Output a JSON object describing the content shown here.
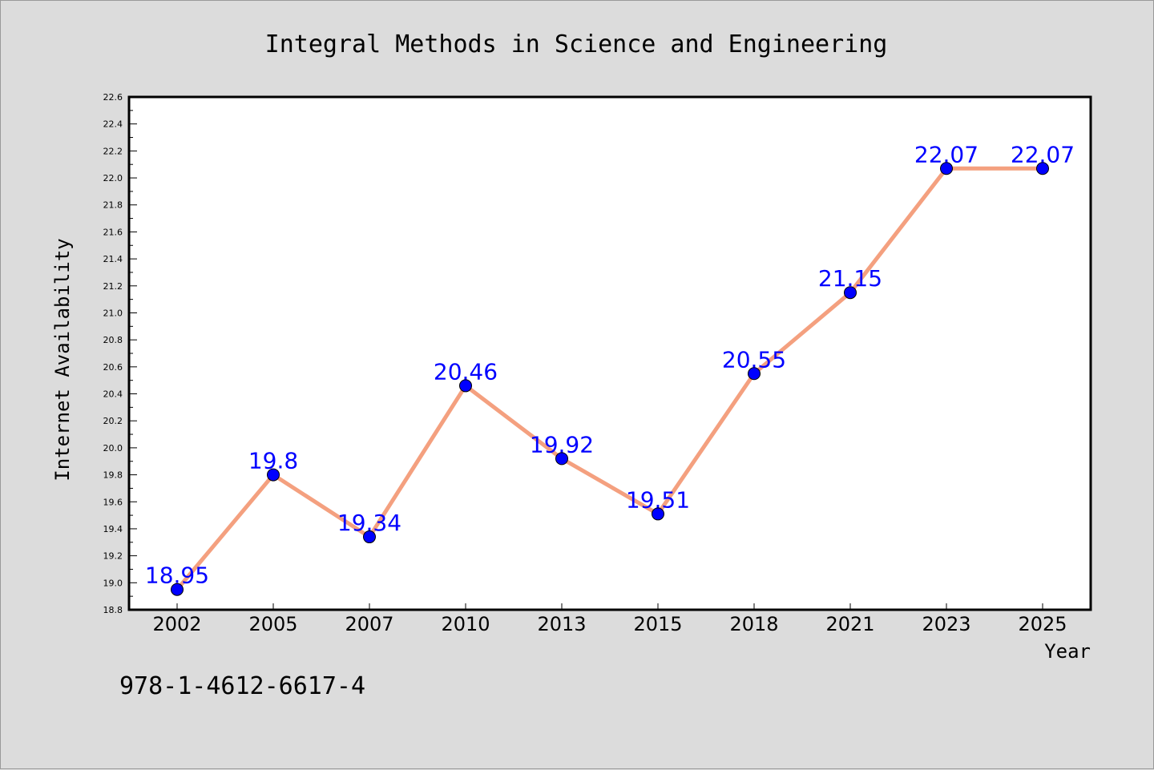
{
  "colors": {
    "background": "#dcdcdc",
    "plot_background": "#ffffff",
    "line": "#f4a07f",
    "marker": "#0000ff",
    "label": "#0000ff",
    "axis": "#000000"
  },
  "isbn": "978-1-4612-6617-4",
  "chart_data": {
    "type": "line",
    "title": "Integral Methods in Science and Engineering",
    "xlabel": "Year",
    "ylabel": "Internet Availability",
    "categories": [
      "2002",
      "2005",
      "2007",
      "2010",
      "2013",
      "2015",
      "2018",
      "2021",
      "2023",
      "2025"
    ],
    "series": [
      {
        "values": [
          18.95,
          19.8,
          19.34,
          20.46,
          19.92,
          19.51,
          20.55,
          21.15,
          22.07,
          22.07
        ]
      }
    ],
    "data_labels": [
      "18.95",
      "19.8",
      "19.34",
      "20.46",
      "19.92",
      "19.51",
      "20.55",
      "21.15",
      "22.07",
      "22.07"
    ],
    "ylim": [
      18.8,
      22.6
    ],
    "yticks": [
      "18.8",
      "19.0",
      "19.2",
      "19.4",
      "19.6",
      "19.8",
      "20.0",
      "20.2",
      "20.4",
      "20.6",
      "20.8",
      "21.0",
      "21.2",
      "21.4",
      "21.6",
      "21.8",
      "22.0",
      "22.2",
      "22.4",
      "22.6"
    ],
    "grid": false,
    "legend": "none"
  }
}
